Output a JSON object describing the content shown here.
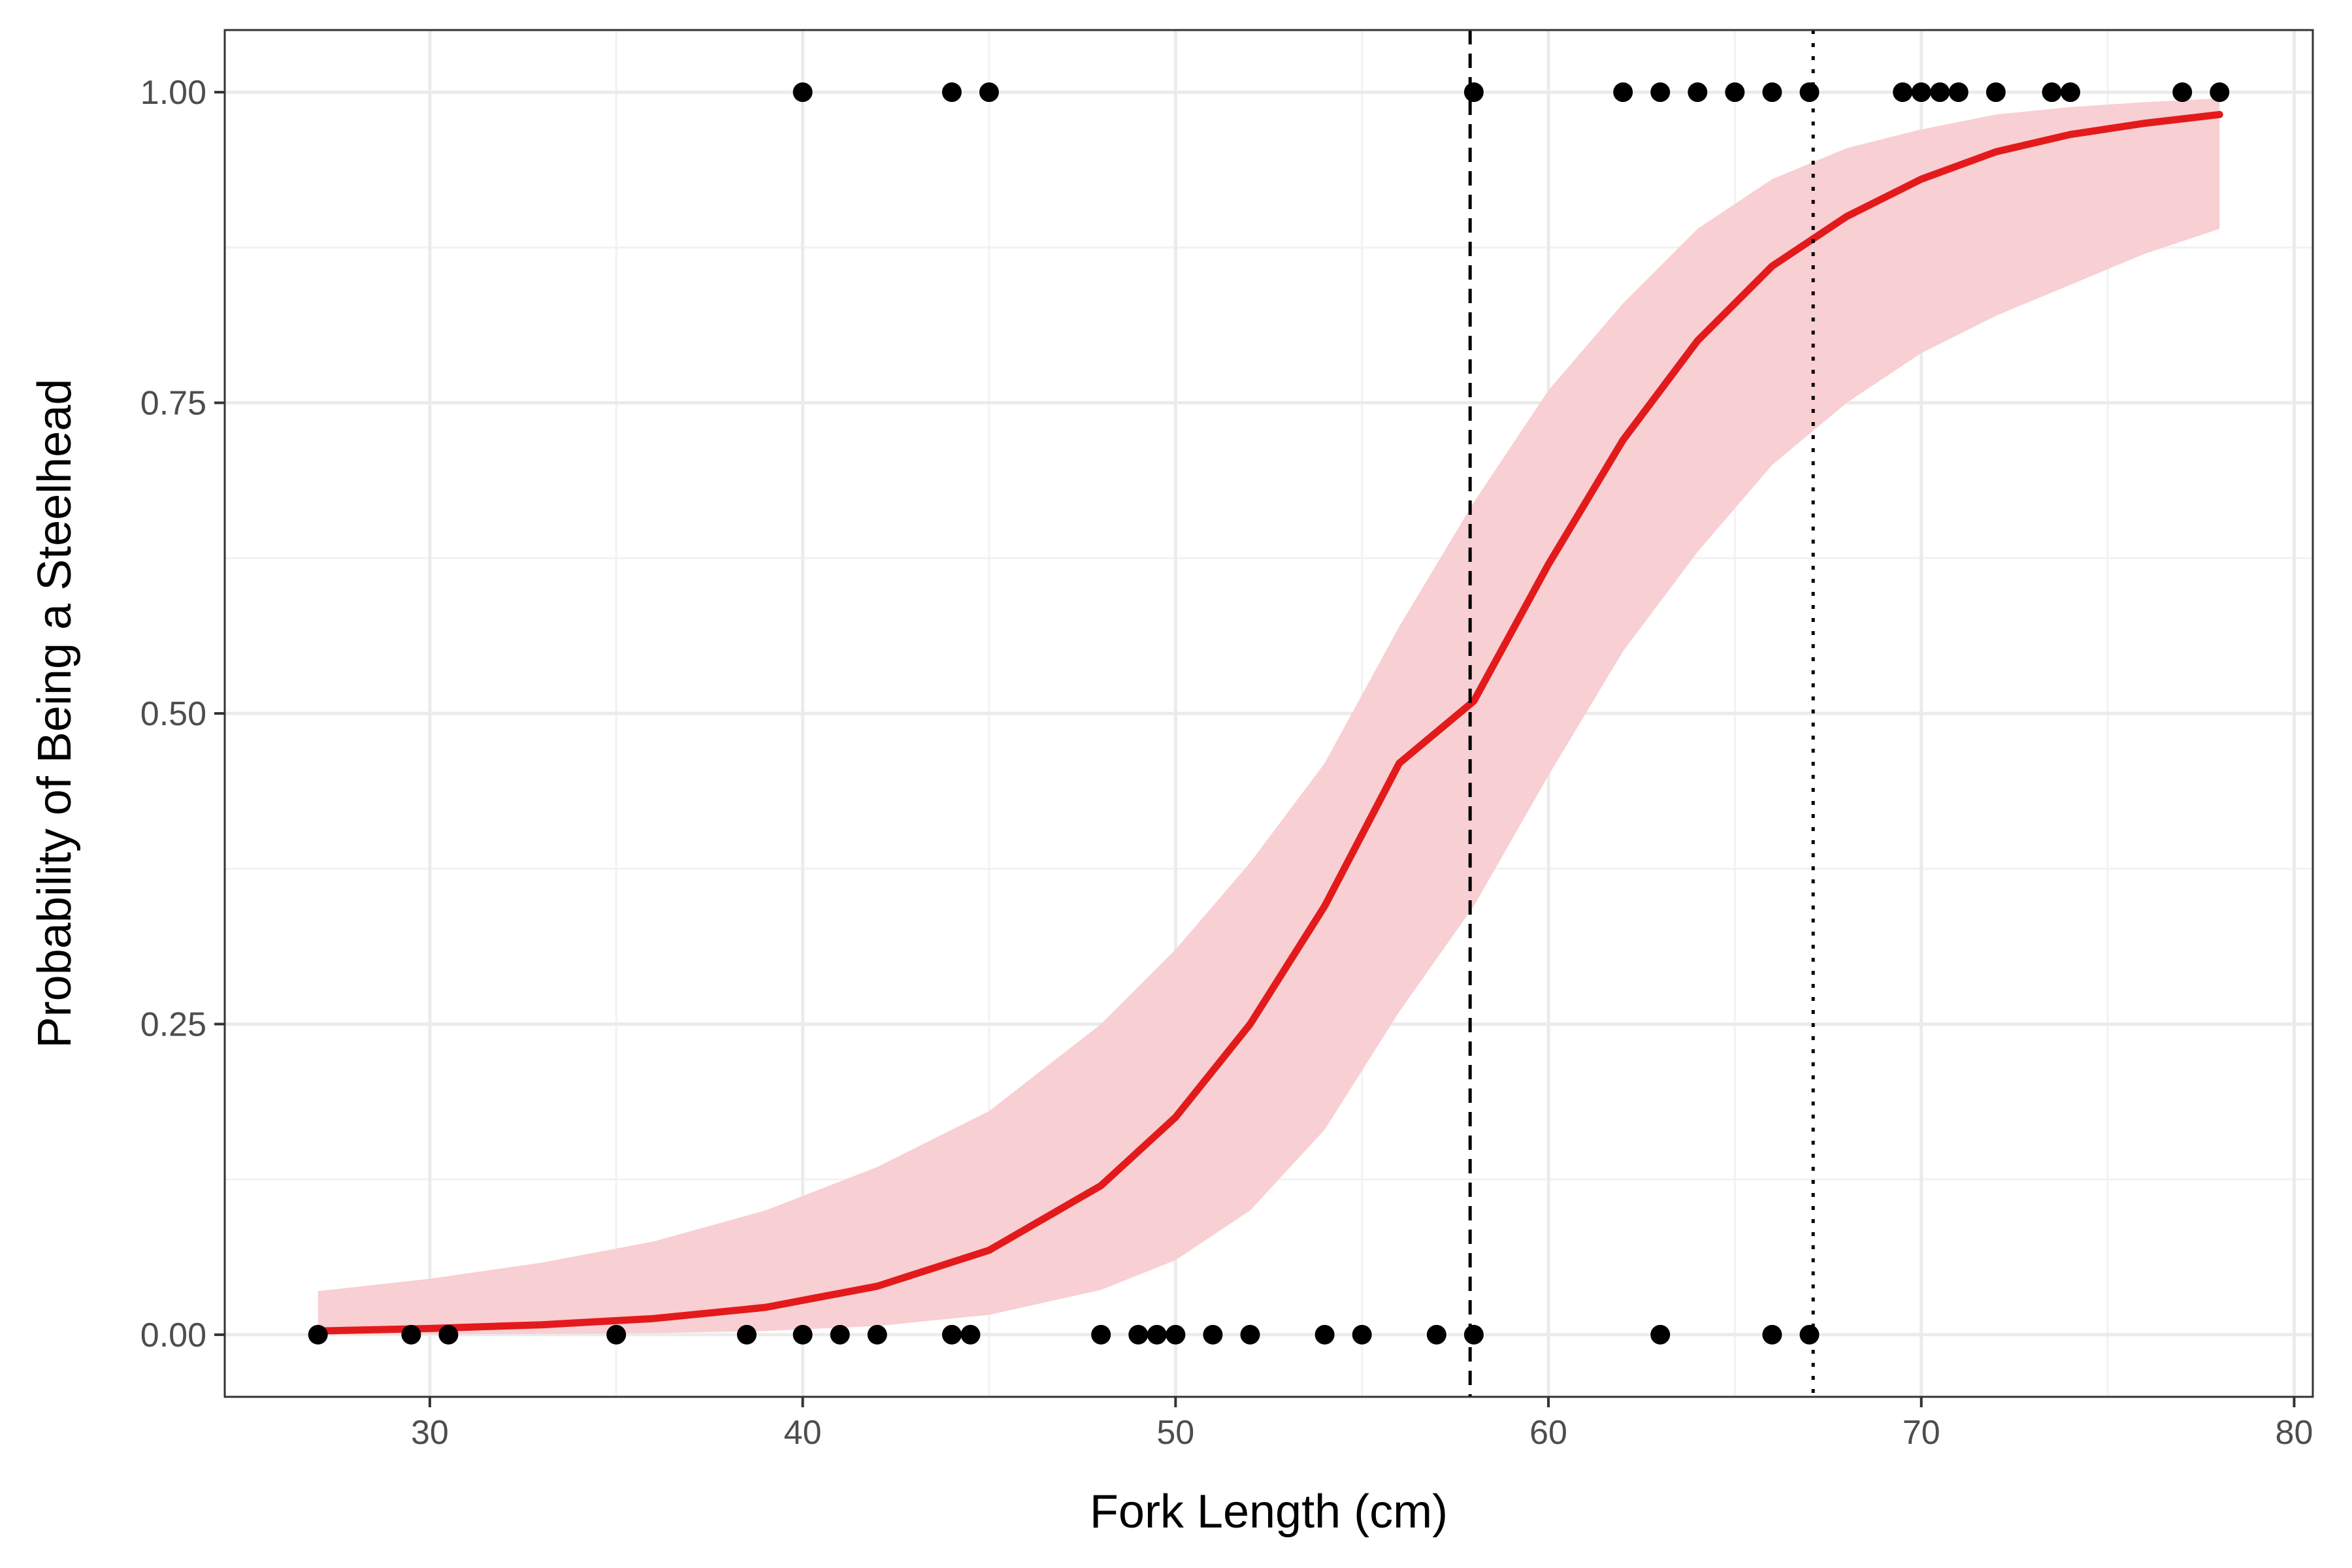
{
  "chart_data": {
    "type": "scatter",
    "xlabel": "Fork Length (cm)",
    "ylabel": "Probability of Being a Steelhead",
    "xlim": [
      24.5,
      80.5
    ],
    "ylim": [
      -0.05,
      1.05
    ],
    "x_ticks": [
      30,
      40,
      50,
      60,
      70,
      80
    ],
    "y_ticks": [
      0,
      0.25,
      0.5,
      0.75,
      1
    ],
    "x_tick_labels": [
      "30",
      "40",
      "50",
      "60",
      "70",
      "80"
    ],
    "y_tick_labels": [
      "0.00",
      "0.25",
      "0.50",
      "0.75",
      "1.00"
    ],
    "grid": true,
    "legend": "none",
    "points": [
      {
        "x": 40,
        "y": 1
      },
      {
        "x": 44,
        "y": 1
      },
      {
        "x": 45,
        "y": 1
      },
      {
        "x": 58,
        "y": 1
      },
      {
        "x": 62,
        "y": 1
      },
      {
        "x": 63,
        "y": 1
      },
      {
        "x": 64,
        "y": 1
      },
      {
        "x": 65,
        "y": 1
      },
      {
        "x": 66,
        "y": 1
      },
      {
        "x": 67,
        "y": 1
      },
      {
        "x": 69.5,
        "y": 1
      },
      {
        "x": 70,
        "y": 1
      },
      {
        "x": 70.5,
        "y": 1
      },
      {
        "x": 71,
        "y": 1
      },
      {
        "x": 72,
        "y": 1
      },
      {
        "x": 73.5,
        "y": 1
      },
      {
        "x": 74,
        "y": 1
      },
      {
        "x": 77,
        "y": 1
      },
      {
        "x": 78,
        "y": 1
      },
      {
        "x": 27,
        "y": 0
      },
      {
        "x": 29.5,
        "y": 0
      },
      {
        "x": 30.5,
        "y": 0
      },
      {
        "x": 35,
        "y": 0
      },
      {
        "x": 38.5,
        "y": 0
      },
      {
        "x": 40,
        "y": 0
      },
      {
        "x": 41,
        "y": 0
      },
      {
        "x": 42,
        "y": 0
      },
      {
        "x": 44,
        "y": 0
      },
      {
        "x": 44.5,
        "y": 0
      },
      {
        "x": 48,
        "y": 0
      },
      {
        "x": 49,
        "y": 0
      },
      {
        "x": 49.5,
        "y": 0
      },
      {
        "x": 50,
        "y": 0
      },
      {
        "x": 51,
        "y": 0
      },
      {
        "x": 52,
        "y": 0
      },
      {
        "x": 54,
        "y": 0
      },
      {
        "x": 55,
        "y": 0
      },
      {
        "x": 57,
        "y": 0
      },
      {
        "x": 58,
        "y": 0
      },
      {
        "x": 63,
        "y": 0
      },
      {
        "x": 66,
        "y": 0
      },
      {
        "x": 67,
        "y": 0
      }
    ],
    "fit_line": {
      "color": "#e31a1c",
      "x": [
        27,
        30,
        33,
        36,
        39,
        42,
        45,
        48,
        50,
        52,
        54,
        56,
        58,
        60,
        62,
        64,
        66,
        68,
        70,
        72,
        74,
        76,
        78
      ],
      "y": [
        0.003,
        0.005,
        0.008,
        0.013,
        0.022,
        0.039,
        0.068,
        0.12,
        0.175,
        0.25,
        0.345,
        0.46,
        0.51,
        0.62,
        0.72,
        0.8,
        0.86,
        0.9,
        0.93,
        0.952,
        0.966,
        0.975,
        0.982
      ]
    },
    "confidence_band": {
      "color": "#f8cfd2",
      "x": [
        27,
        30,
        33,
        36,
        39,
        42,
        45,
        48,
        50,
        52,
        54,
        56,
        58,
        60,
        62,
        64,
        66,
        68,
        70,
        72,
        74,
        76,
        78
      ],
      "lower": [
        0.0001,
        0.0003,
        0.0006,
        0.0012,
        0.003,
        0.007,
        0.016,
        0.036,
        0.06,
        0.1,
        0.165,
        0.26,
        0.345,
        0.45,
        0.55,
        0.63,
        0.7,
        0.75,
        0.79,
        0.82,
        0.845,
        0.87,
        0.89
      ],
      "upper": [
        0.035,
        0.045,
        0.058,
        0.075,
        0.1,
        0.135,
        0.18,
        0.25,
        0.31,
        0.38,
        0.46,
        0.57,
        0.67,
        0.76,
        0.83,
        0.89,
        0.93,
        0.955,
        0.97,
        0.982,
        0.988,
        0.992,
        0.995
      ]
    },
    "reference_lines": [
      {
        "x": 57.9,
        "style": "dashed"
      },
      {
        "x": 67.1,
        "style": "dotted"
      }
    ]
  }
}
